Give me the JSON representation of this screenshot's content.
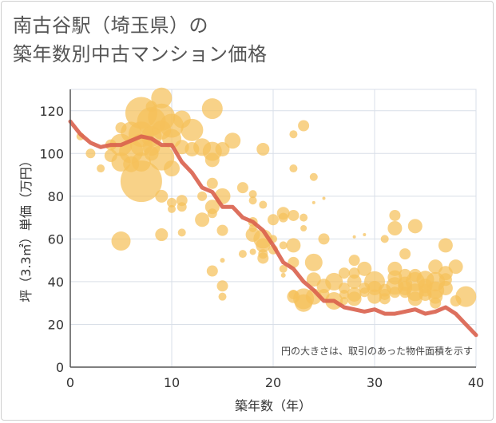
{
  "title_lines": [
    "南古谷駅（埼玉県）の",
    "築年数別中古マンション価格"
  ],
  "chart_data": {
    "type": "scatter",
    "title": "南古谷駅（埼玉県）の築年数別中古マンション価格",
    "xlabel": "築年数（年）",
    "ylabel": "坪（3.3㎡）単価（万円）",
    "xlim": [
      0,
      40
    ],
    "ylim": [
      0,
      130
    ],
    "xticks": [
      0,
      10,
      20,
      30,
      40
    ],
    "yticks": [
      0,
      20,
      40,
      60,
      80,
      100,
      120
    ],
    "grid": true,
    "note": "円の大きさは、取引のあった物件面積を示す",
    "colors": {
      "bubble": "#f5c05a",
      "trend": "#d9604c",
      "grid": "#d9dfe8"
    },
    "series": [
      {
        "kind": "bubble",
        "points": [
          [
            1,
            108,
            5
          ],
          [
            2,
            100,
            6
          ],
          [
            3,
            93,
            5
          ],
          [
            4,
            104,
            7
          ],
          [
            4,
            99,
            8
          ],
          [
            5,
            104,
            14
          ],
          [
            5,
            96,
            12
          ],
          [
            5,
            59,
            12
          ],
          [
            5,
            112,
            7
          ],
          [
            6,
            110,
            13
          ],
          [
            6,
            101,
            15
          ],
          [
            6,
            95,
            10
          ],
          [
            7,
            119,
            20
          ],
          [
            7,
            109,
            16
          ],
          [
            7,
            104,
            14
          ],
          [
            7,
            87,
            26
          ],
          [
            7,
            96,
            12
          ],
          [
            8,
            122,
            7
          ],
          [
            8,
            115,
            18
          ],
          [
            8,
            108,
            13
          ],
          [
            8,
            103,
            11
          ],
          [
            8,
            100,
            9
          ],
          [
            9,
            126,
            13
          ],
          [
            9,
            117,
            17
          ],
          [
            9,
            111,
            12
          ],
          [
            9,
            98,
            16
          ],
          [
            9,
            80,
            8
          ],
          [
            9,
            62,
            8
          ],
          [
            10,
            113,
            15
          ],
          [
            10,
            107,
            12
          ],
          [
            10,
            93,
            10
          ],
          [
            10,
            77,
            6
          ],
          [
            10,
            74,
            5
          ],
          [
            11,
            116,
            11
          ],
          [
            11,
            103,
            9
          ],
          [
            11,
            78,
            7
          ],
          [
            11,
            75,
            6
          ],
          [
            11,
            63,
            5
          ],
          [
            12,
            111,
            14
          ],
          [
            12,
            102,
            9
          ],
          [
            13,
            103,
            11
          ],
          [
            13,
            80,
            6
          ],
          [
            13,
            69,
            9
          ],
          [
            14,
            121,
            13
          ],
          [
            14,
            101,
            12
          ],
          [
            14,
            97,
            9
          ],
          [
            14,
            86,
            7
          ],
          [
            14,
            75,
            9
          ],
          [
            14,
            72,
            6
          ],
          [
            14,
            45,
            7
          ],
          [
            15,
            102,
            9
          ],
          [
            15,
            80,
            10
          ],
          [
            15,
            64,
            7
          ],
          [
            15,
            50,
            3
          ],
          [
            15,
            38,
            7
          ],
          [
            15,
            33,
            5
          ],
          [
            16,
            106,
            10
          ],
          [
            17,
            84,
            7
          ],
          [
            17,
            53,
            5
          ],
          [
            18,
            81,
            5
          ],
          [
            18,
            78,
            5
          ],
          [
            18,
            68,
            6
          ],
          [
            18,
            65,
            5
          ],
          [
            18,
            62,
            9
          ],
          [
            18,
            54,
            4
          ],
          [
            19,
            102,
            8
          ],
          [
            19,
            76,
            5
          ],
          [
            19,
            60,
            12
          ],
          [
            19,
            57,
            9
          ],
          [
            19,
            53,
            6
          ],
          [
            19,
            51,
            7
          ],
          [
            20,
            69,
            7
          ],
          [
            20,
            60,
            5
          ],
          [
            20,
            55,
            6
          ],
          [
            21,
            72,
            8
          ],
          [
            21,
            70,
            6
          ],
          [
            21,
            57,
            5
          ],
          [
            21,
            46,
            5
          ],
          [
            21,
            43,
            3
          ],
          [
            22,
            109,
            5
          ],
          [
            22,
            93,
            5
          ],
          [
            22,
            71,
            7
          ],
          [
            22,
            57,
            9
          ],
          [
            22,
            49,
            7
          ],
          [
            22,
            34,
            6
          ],
          [
            22,
            33,
            8
          ],
          [
            23,
            113,
            7
          ],
          [
            23,
            70,
            5
          ],
          [
            23,
            65,
            4
          ],
          [
            23,
            32,
            13
          ],
          [
            23,
            30,
            11
          ],
          [
            24,
            89,
            5
          ],
          [
            24,
            77,
            2
          ],
          [
            24,
            49,
            11
          ],
          [
            24,
            41,
            9
          ],
          [
            24,
            33,
            10
          ],
          [
            25,
            79,
            2
          ],
          [
            25,
            60,
            7
          ],
          [
            25,
            38,
            9
          ],
          [
            25,
            34,
            7
          ],
          [
            26,
            40,
            11
          ],
          [
            26,
            31,
            11
          ],
          [
            27,
            44,
            7
          ],
          [
            27,
            37,
            7
          ],
          [
            27,
            34,
            6
          ],
          [
            27,
            31,
            5
          ],
          [
            28,
            61,
            2
          ],
          [
            28,
            50,
            7
          ],
          [
            28,
            44,
            7
          ],
          [
            28,
            40,
            9
          ],
          [
            28,
            34,
            9
          ],
          [
            28,
            32,
            9
          ],
          [
            29,
            62,
            2
          ],
          [
            29,
            46,
            9
          ],
          [
            29,
            37,
            7
          ],
          [
            29,
            35,
            6
          ],
          [
            30,
            40,
            13
          ],
          [
            30,
            37,
            9
          ],
          [
            30,
            33,
            9
          ],
          [
            31,
            60,
            5
          ],
          [
            31,
            36,
            8
          ],
          [
            31,
            34,
            7
          ],
          [
            31,
            32,
            7
          ],
          [
            32,
            71,
            7
          ],
          [
            32,
            65,
            9
          ],
          [
            32,
            46,
            9
          ],
          [
            32,
            42,
            9
          ],
          [
            32,
            38,
            11
          ],
          [
            32,
            35,
            7
          ],
          [
            33,
            53,
            7
          ],
          [
            33,
            43,
            8
          ],
          [
            33,
            39,
            9
          ],
          [
            33,
            37,
            9
          ],
          [
            33,
            35,
            7
          ],
          [
            34,
            66,
            9
          ],
          [
            34,
            43,
            8
          ],
          [
            34,
            40,
            12
          ],
          [
            34,
            35,
            11
          ],
          [
            34,
            32,
            9
          ],
          [
            35,
            41,
            11
          ],
          [
            35,
            38,
            9
          ],
          [
            35,
            36,
            8
          ],
          [
            35,
            34,
            8
          ],
          [
            36,
            47,
            9
          ],
          [
            36,
            40,
            12
          ],
          [
            36,
            36,
            11
          ],
          [
            36,
            33,
            9
          ],
          [
            36,
            30,
            7
          ],
          [
            37,
            57,
            9
          ],
          [
            37,
            44,
            9
          ],
          [
            37,
            41,
            8
          ],
          [
            37,
            37,
            9
          ],
          [
            38,
            47,
            9
          ],
          [
            38,
            31,
            7
          ],
          [
            39,
            33,
            13
          ]
        ]
      },
      {
        "kind": "line",
        "points": [
          [
            0,
            115
          ],
          [
            1,
            109
          ],
          [
            2,
            105
          ],
          [
            3,
            103
          ],
          [
            4,
            104
          ],
          [
            5,
            104
          ],
          [
            6,
            106
          ],
          [
            7,
            108
          ],
          [
            8,
            107
          ],
          [
            9,
            104
          ],
          [
            10,
            104
          ],
          [
            11,
            96
          ],
          [
            12,
            91
          ],
          [
            13,
            84
          ],
          [
            14,
            82
          ],
          [
            15,
            75
          ],
          [
            16,
            75
          ],
          [
            17,
            70
          ],
          [
            18,
            68
          ],
          [
            19,
            64
          ],
          [
            20,
            57
          ],
          [
            21,
            49
          ],
          [
            22,
            46
          ],
          [
            23,
            40
          ],
          [
            24,
            36
          ],
          [
            25,
            31
          ],
          [
            26,
            31
          ],
          [
            27,
            28
          ],
          [
            28,
            27
          ],
          [
            29,
            26
          ],
          [
            30,
            27
          ],
          [
            31,
            25
          ],
          [
            32,
            25
          ],
          [
            33,
            26
          ],
          [
            34,
            27
          ],
          [
            35,
            25
          ],
          [
            36,
            26
          ],
          [
            37,
            28
          ],
          [
            38,
            25
          ],
          [
            39,
            20
          ],
          [
            40,
            15
          ]
        ]
      }
    ]
  }
}
